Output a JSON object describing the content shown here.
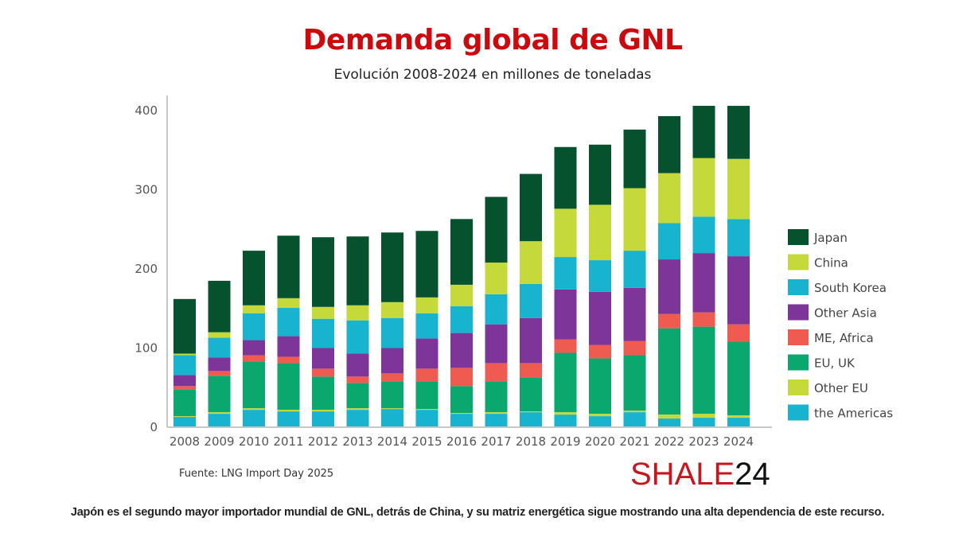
{
  "header": {
    "title": "Demanda global de GNL",
    "subtitle": "Evolución 2008-2024 en millones de toneladas"
  },
  "footer": {
    "source": "Fuente: LNG Import Day 2025",
    "logo_red": "SHALE",
    "logo_black": "24",
    "caption": "Japón es el segundo mayor importador mundial de GNL, detrás de China, y su matriz energética sigue mostrando una alta dependencia de este recurso."
  },
  "chart_data": {
    "type": "bar",
    "stacked": true,
    "title": "Demanda global de GNL",
    "subtitle": "Evolución 2008-2024 en millones de toneladas",
    "xlabel": "",
    "ylabel": "",
    "ylim": [
      0,
      420
    ],
    "yticks": [
      0,
      100,
      200,
      300,
      400
    ],
    "grid": false,
    "legend_position": "right",
    "categories": [
      "2008",
      "2009",
      "2010",
      "2011",
      "2012",
      "2013",
      "2014",
      "2015",
      "2016",
      "2017",
      "2018",
      "2019",
      "2020",
      "2021",
      "2022",
      "2023",
      "2024"
    ],
    "series": [
      {
        "name": "the Americas",
        "color": "#17b3cf",
        "values": [
          13,
          17,
          22,
          20,
          20,
          22,
          23,
          22,
          17,
          17,
          19,
          16,
          14,
          19,
          11,
          12,
          12
        ]
      },
      {
        "name": "Other EU",
        "color": "#c6d93a",
        "values": [
          1,
          2,
          2,
          2,
          2,
          2,
          1,
          1,
          1,
          2,
          1,
          3,
          3,
          2,
          5,
          5,
          3
        ]
      },
      {
        "name": "EU, UK",
        "color": "#0aa76e",
        "values": [
          34,
          46,
          59,
          59,
          42,
          32,
          34,
          35,
          34,
          39,
          43,
          75,
          70,
          70,
          109,
          110,
          93
        ]
      },
      {
        "name": "ME, Africa",
        "color": "#ef5b50",
        "values": [
          4,
          6,
          8,
          8,
          10,
          8,
          10,
          16,
          23,
          23,
          18,
          17,
          17,
          18,
          18,
          18,
          22
        ]
      },
      {
        "name": "Other Asia",
        "color": "#7e3599",
        "values": [
          14,
          17,
          19,
          26,
          26,
          29,
          32,
          38,
          44,
          49,
          57,
          63,
          67,
          67,
          69,
          75,
          86
        ]
      },
      {
        "name": "South Korea",
        "color": "#17b3cf",
        "values": [
          25,
          25,
          34,
          36,
          37,
          42,
          38,
          32,
          34,
          38,
          43,
          41,
          40,
          47,
          46,
          46,
          47
        ]
      },
      {
        "name": "China",
        "color": "#c6d93a",
        "values": [
          2,
          7,
          10,
          12,
          15,
          19,
          20,
          20,
          27,
          40,
          54,
          61,
          70,
          79,
          63,
          74,
          76
        ]
      },
      {
        "name": "Japan",
        "color": "#06522f",
        "values": [
          69,
          65,
          69,
          79,
          88,
          87,
          88,
          84,
          83,
          83,
          85,
          78,
          76,
          74,
          72,
          66,
          67
        ]
      }
    ],
    "legend_order": [
      "Japan",
      "China",
      "South Korea",
      "Other Asia",
      "ME, Africa",
      "EU, UK",
      "Other EU",
      "the Americas"
    ]
  }
}
